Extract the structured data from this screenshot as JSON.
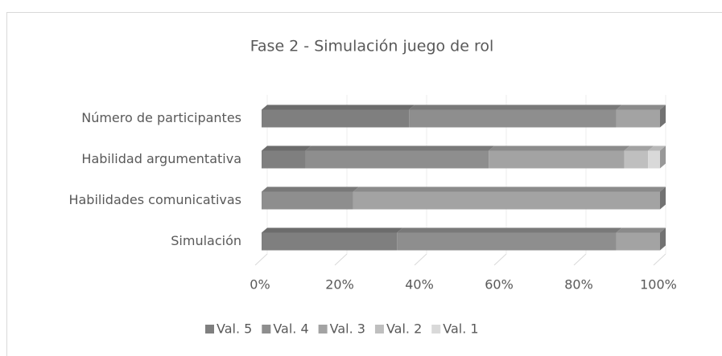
{
  "chart_data": {
    "type": "bar",
    "orientation": "horizontal",
    "stacked": true,
    "three_d": true,
    "title": "Fase 2 - Simulación juego de rol",
    "categories": [
      "Número de participantes",
      "Habilidad argumentativa",
      "Habilidades comunicativas",
      "Simulación"
    ],
    "series": [
      {
        "name": "Val. 5",
        "color": "#7f7f7f",
        "values": [
          37,
          11,
          0,
          34
        ]
      },
      {
        "name": "Val. 4",
        "color": "#8e8e8e",
        "values": [
          52,
          46,
          23,
          55
        ]
      },
      {
        "name": "Val. 3",
        "color": "#a3a3a3",
        "values": [
          11,
          34,
          77,
          11
        ]
      },
      {
        "name": "Val. 2",
        "color": "#bfbfbf",
        "values": [
          0,
          6,
          0,
          0
        ]
      },
      {
        "name": "Val. 1",
        "color": "#d9d9d9",
        "values": [
          0,
          3,
          0,
          0
        ]
      }
    ],
    "xlim": [
      0,
      100
    ],
    "xticks": [
      {
        "value": 0,
        "label": "0%"
      },
      {
        "value": 20,
        "label": "20%"
      },
      {
        "value": 40,
        "label": "40%"
      },
      {
        "value": 60,
        "label": "60%"
      },
      {
        "value": 80,
        "label": "80%"
      },
      {
        "value": 100,
        "label": "100%"
      }
    ],
    "grid": true,
    "legend": "bottom"
  }
}
